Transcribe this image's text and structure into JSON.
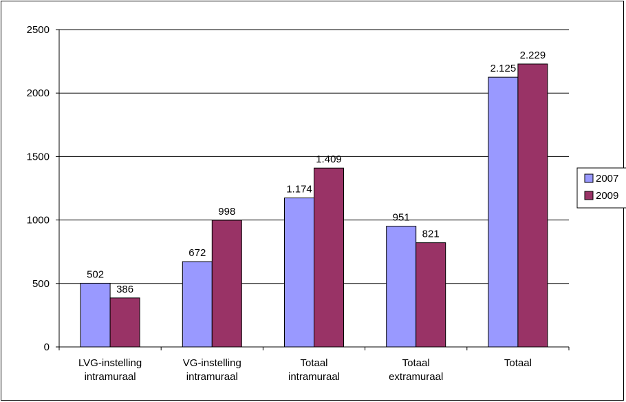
{
  "chart_data": {
    "type": "bar",
    "title": "",
    "xlabel": "",
    "ylabel": "",
    "ylim": [
      0,
      2500
    ],
    "yticks": [
      0,
      500,
      1000,
      1500,
      2000,
      2500
    ],
    "grid": true,
    "legend_position": "right",
    "categories": [
      [
        "LVG-instelling",
        "intramuraal"
      ],
      [
        "VG-instelling",
        "intramuraal"
      ],
      [
        "Totaal",
        "intramuraal"
      ],
      [
        "Totaal",
        "extramuraal"
      ],
      [
        "Totaal"
      ]
    ],
    "series": [
      {
        "name": "2007",
        "color": "#9999ff",
        "values": [
          502,
          672,
          1174,
          951,
          2125
        ],
        "labels": [
          "502",
          "672",
          "1.174",
          "951",
          "2.125"
        ]
      },
      {
        "name": "2009",
        "color": "#993366",
        "values": [
          386,
          998,
          1409,
          821,
          2229
        ],
        "labels": [
          "386",
          "998",
          "1.409",
          "821",
          "2.229"
        ]
      }
    ]
  }
}
